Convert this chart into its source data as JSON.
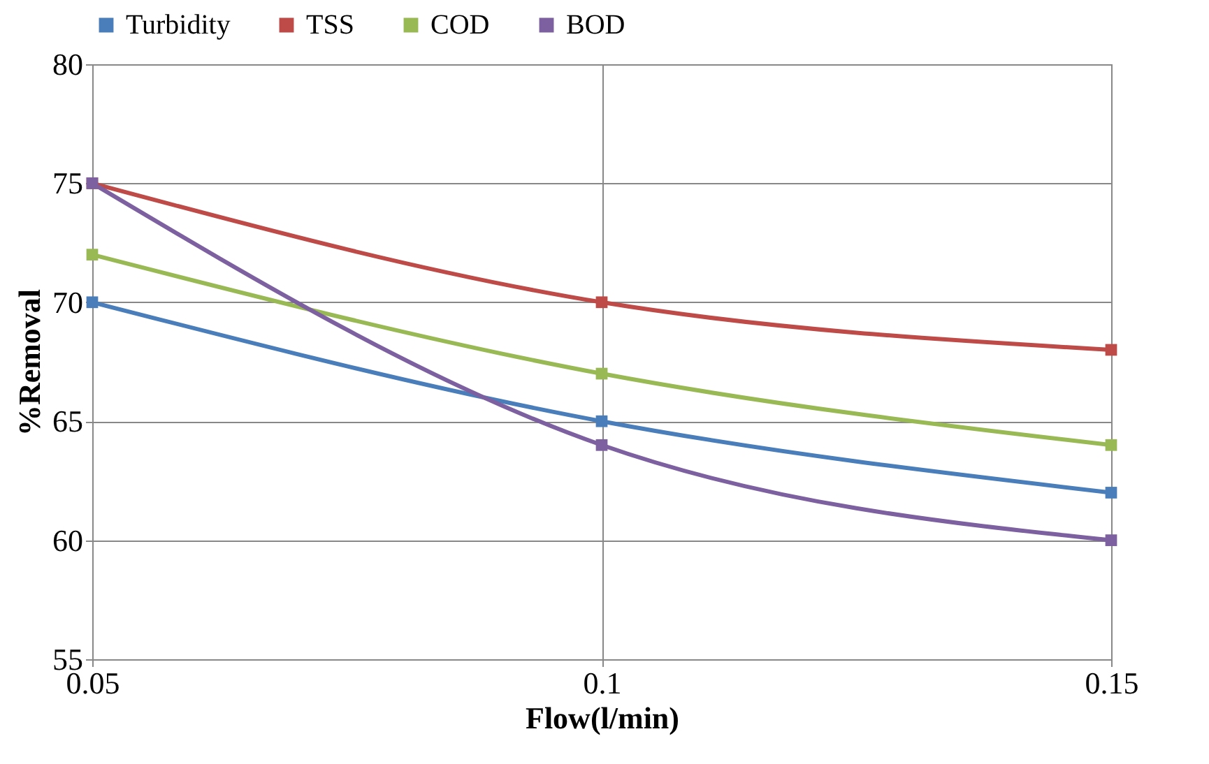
{
  "chart_data": {
    "type": "line",
    "xlabel": "Flow(l/min)",
    "ylabel": "%Removal",
    "x": [
      0.05,
      0.1,
      0.15
    ],
    "series": [
      {
        "name": "Turbidity",
        "color": "#4a7ebb",
        "values": [
          70,
          65,
          62
        ]
      },
      {
        "name": "TSS",
        "color": "#be4b48",
        "values": [
          75,
          70,
          68
        ]
      },
      {
        "name": "COD",
        "color": "#98b954",
        "values": [
          72,
          67,
          64
        ]
      },
      {
        "name": "BOD",
        "color": "#7d60a0",
        "values": [
          75,
          64,
          60
        ]
      }
    ],
    "xlim": [
      0.05,
      0.15
    ],
    "xticks": [
      0.05,
      0.1,
      0.15
    ],
    "ylim": [
      55,
      80
    ],
    "yticks": [
      55,
      60,
      65,
      70,
      75,
      80
    ],
    "grid": true,
    "legend": "top",
    "marker": "square",
    "line_style": "solid"
  }
}
